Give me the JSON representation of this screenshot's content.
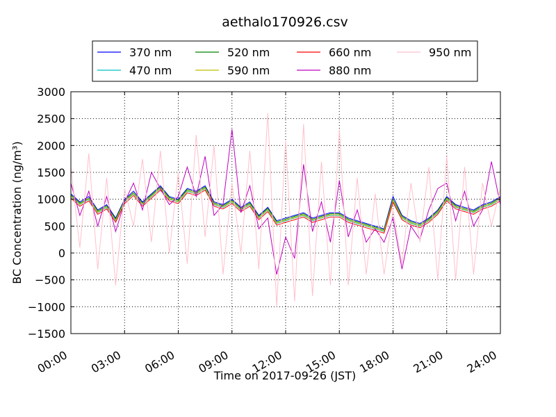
{
  "chart_data": {
    "type": "line",
    "title": "aethalo170926.csv",
    "xlabel": "Time on 2017-09-26 (JST)",
    "ylabel": "BC Concentration (ng/m³)",
    "xlim_hours": [
      0,
      24
    ],
    "ylim": [
      -1500,
      3000
    ],
    "x_ticks": [
      "00:00",
      "03:00",
      "06:00",
      "09:00",
      "12:00",
      "15:00",
      "18:00",
      "21:00",
      "24:00"
    ],
    "y_ticks": [
      "3000",
      "2500",
      "2000",
      "1500",
      "1000",
      "500",
      "0",
      "−500",
      "−1000",
      "−1500"
    ],
    "grid": true,
    "legend_position": "top",
    "x_hours": [
      0.0,
      0.5,
      1.0,
      1.5,
      2.0,
      2.5,
      3.0,
      3.5,
      4.0,
      4.5,
      5.0,
      5.5,
      6.0,
      6.5,
      7.0,
      7.5,
      8.0,
      8.5,
      9.0,
      9.5,
      10.0,
      10.5,
      11.0,
      11.5,
      12.0,
      12.5,
      13.0,
      13.5,
      14.0,
      14.5,
      15.0,
      15.5,
      16.0,
      16.5,
      17.0,
      17.5,
      18.0,
      18.5,
      19.0,
      19.5,
      20.0,
      20.5,
      21.0,
      21.5,
      22.0,
      22.5,
      23.0,
      23.5,
      24.0
    ],
    "series": [
      {
        "name": "370 nm",
        "color": "#0000ff",
        "values": [
          1100,
          950,
          1050,
          800,
          900,
          650,
          1000,
          1150,
          950,
          1100,
          1250,
          1050,
          1000,
          1200,
          1150,
          1250,
          950,
          900,
          1000,
          850,
          950,
          700,
          850,
          600,
          650,
          700,
          750,
          650,
          700,
          750,
          750,
          650,
          600,
          550,
          500,
          450,
          1050,
          700,
          600,
          550,
          650,
          800,
          1050,
          900,
          850,
          800,
          900,
          950,
          1050
        ]
      },
      {
        "name": "470 nm",
        "color": "#00bfbf",
        "values": [
          1050,
          900,
          1000,
          750,
          850,
          600,
          950,
          1100,
          900,
          1050,
          1200,
          1000,
          950,
          1150,
          1100,
          1200,
          900,
          850,
          950,
          800,
          900,
          650,
          800,
          550,
          600,
          650,
          700,
          600,
          650,
          700,
          700,
          600,
          550,
          500,
          450,
          400,
          950,
          650,
          550,
          500,
          600,
          750,
          1000,
          850,
          800,
          750,
          850,
          900,
          1000
        ]
      },
      {
        "name": "520 nm",
        "color": "#008000",
        "values": [
          1080,
          930,
          1020,
          780,
          880,
          630,
          980,
          1120,
          930,
          1080,
          1230,
          1030,
          980,
          1180,
          1130,
          1230,
          930,
          880,
          980,
          830,
          930,
          680,
          830,
          580,
          630,
          680,
          730,
          630,
          680,
          730,
          730,
          630,
          580,
          530,
          480,
          430,
          1000,
          680,
          580,
          530,
          630,
          780,
          1030,
          880,
          830,
          780,
          880,
          930,
          1030
        ]
      },
      {
        "name": "590 nm",
        "color": "#bfbf00",
        "values": [
          1060,
          910,
          1010,
          760,
          860,
          610,
          960,
          1110,
          910,
          1060,
          1210,
          1010,
          960,
          1160,
          1110,
          1210,
          910,
          860,
          960,
          810,
          910,
          660,
          810,
          560,
          610,
          660,
          710,
          610,
          660,
          710,
          710,
          610,
          560,
          510,
          460,
          410,
          980,
          660,
          560,
          510,
          610,
          760,
          1010,
          860,
          810,
          760,
          860,
          910,
          1010
        ]
      },
      {
        "name": "660 nm",
        "color": "#ff0000",
        "values": [
          1020,
          870,
          970,
          720,
          820,
          570,
          920,
          1070,
          870,
          1020,
          1170,
          970,
          920,
          1120,
          1070,
          1170,
          870,
          820,
          920,
          770,
          870,
          620,
          770,
          520,
          570,
          620,
          670,
          570,
          620,
          670,
          670,
          570,
          520,
          470,
          420,
          370,
          940,
          620,
          520,
          470,
          570,
          720,
          970,
          820,
          770,
          720,
          820,
          870,
          970
        ]
      },
      {
        "name": "880 nm",
        "color": "#bf00bf",
        "values": [
          1300,
          700,
          1150,
          500,
          1050,
          400,
          950,
          1300,
          800,
          1500,
          1200,
          900,
          1050,
          1600,
          1050,
          1800,
          700,
          900,
          2300,
          750,
          1250,
          450,
          650,
          -400,
          300,
          -100,
          1650,
          400,
          950,
          200,
          1350,
          300,
          800,
          200,
          450,
          200,
          650,
          -300,
          500,
          250,
          800,
          1200,
          1300,
          600,
          1150,
          500,
          800,
          1700,
          900
        ]
      },
      {
        "name": "950 nm",
        "color": "#ffc0cb",
        "values": [
          1600,
          100,
          1850,
          -300,
          1400,
          -600,
          1200,
          500,
          1750,
          200,
          1900,
          0,
          1500,
          -200,
          2200,
          300,
          2000,
          -400,
          1300,
          0,
          1900,
          -300,
          2600,
          -1000,
          2100,
          -900,
          2400,
          -800,
          1700,
          -600,
          2300,
          -600,
          1400,
          -400,
          1100,
          -400,
          800,
          -200,
          1300,
          200,
          1600,
          -500,
          1800,
          -500,
          1600,
          -400,
          1300,
          500,
          1200
        ]
      }
    ]
  }
}
